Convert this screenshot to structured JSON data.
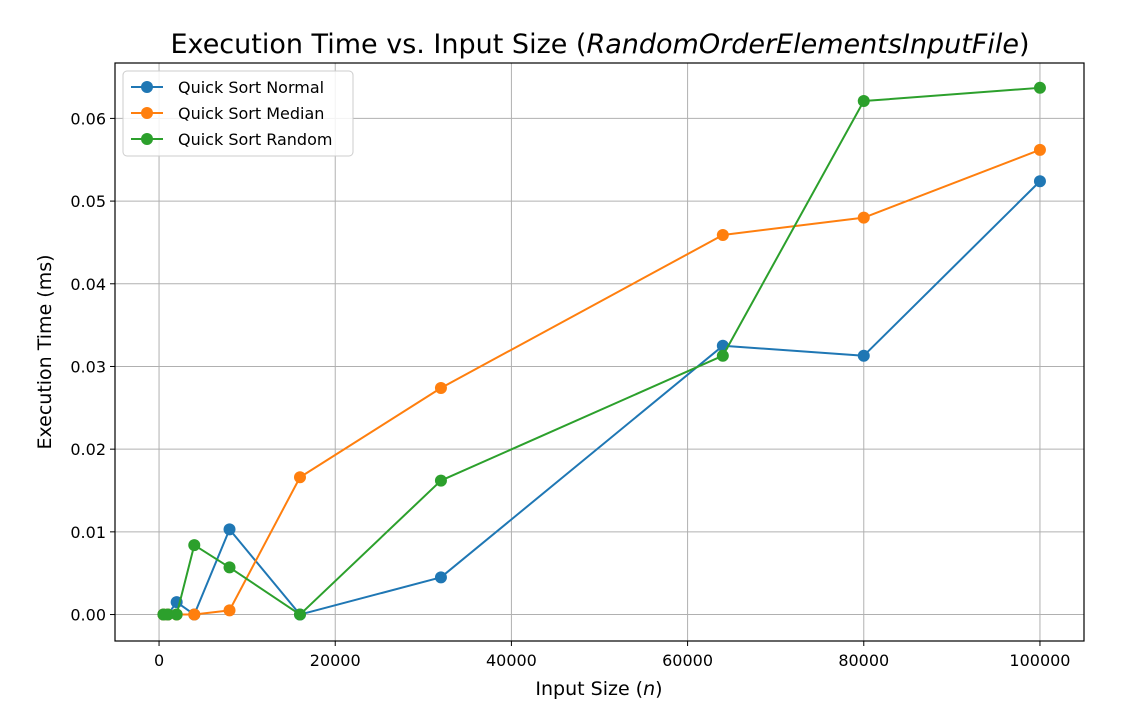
{
  "chart_data": {
    "type": "line",
    "title_prefix": "Execution Time vs. Input Size (",
    "title_italic": "RandomOrderElementsInputFile",
    "title_suffix": ")",
    "xlabel_prefix": "Input Size (",
    "xlabel_italic": "n",
    "xlabel_suffix": ")",
    "ylabel": "Execution Time (ms)",
    "xlim": [
      -5000,
      105000
    ],
    "ylim": [
      -0.0032,
      0.0667
    ],
    "xticks": [
      0,
      20000,
      40000,
      60000,
      80000,
      100000
    ],
    "xtick_labels": [
      "0",
      "20000",
      "40000",
      "60000",
      "80000",
      "100000"
    ],
    "yticks": [
      0.0,
      0.01,
      0.02,
      0.03,
      0.04,
      0.05,
      0.06
    ],
    "ytick_labels": [
      "0.00",
      "0.01",
      "0.02",
      "0.03",
      "0.04",
      "0.05",
      "0.06"
    ],
    "grid": true,
    "legend_position": "top-left",
    "x": [
      500,
      1000,
      2000,
      4000,
      8000,
      16000,
      32000,
      64000,
      80000,
      100000
    ],
    "series": [
      {
        "name": "Quick Sort Normal",
        "color": "#1f77b4",
        "values": [
          0.0,
          0.0,
          0.0015,
          0.0,
          0.0103,
          0.0,
          0.0045,
          0.0325,
          0.0313,
          0.0524
        ]
      },
      {
        "name": "Quick Sort Median",
        "color": "#ff7f0e",
        "values": [
          0.0,
          0.0,
          0.0,
          0.0,
          0.0005,
          0.0166,
          0.0274,
          0.0459,
          0.048,
          0.0562
        ]
      },
      {
        "name": "Quick Sort Random",
        "color": "#2ca02c",
        "values": [
          0.0,
          0.0,
          0.0,
          0.0084,
          0.0057,
          0.0,
          0.0162,
          0.0313,
          0.0621,
          0.0637
        ]
      }
    ]
  }
}
